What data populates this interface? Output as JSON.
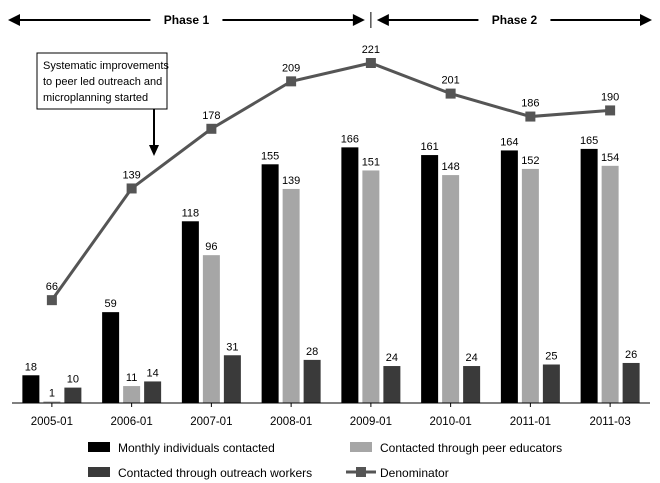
{
  "chart_data": {
    "type": "bar",
    "categories": [
      "2005-01",
      "2006-01",
      "2007-01",
      "2008-01",
      "2009-01",
      "2010-01",
      "2011-01",
      "2011-03"
    ],
    "series": [
      {
        "name": "Monthly individuals contacted",
        "kind": "bar",
        "color": "#000000",
        "values": [
          18,
          59,
          118,
          155,
          166,
          161,
          164,
          165
        ]
      },
      {
        "name": "Contacted through peer educators",
        "kind": "bar",
        "color": "#a6a6a6",
        "values": [
          1,
          11,
          96,
          139,
          151,
          148,
          152,
          154
        ]
      },
      {
        "name": "Contacted through outreach workers",
        "kind": "bar",
        "color": "#3a3a3a",
        "values": [
          10,
          14,
          31,
          28,
          24,
          24,
          25,
          26
        ]
      },
      {
        "name": "Denominator",
        "kind": "line",
        "color": "#555555",
        "values": [
          66,
          139,
          178,
          209,
          221,
          201,
          186,
          190
        ]
      }
    ],
    "phases": [
      {
        "label": "Phase 1",
        "from": "2005-01",
        "to": "2009-01"
      },
      {
        "label": "Phase 2",
        "from": "2009-01",
        "to": "2011-03"
      }
    ],
    "annotation": {
      "lines": [
        "Systematic improvements",
        "to peer led outreach and",
        "microplanning started"
      ],
      "points_to": "2006-01"
    },
    "legend_position": "bottom",
    "grid": false
  }
}
